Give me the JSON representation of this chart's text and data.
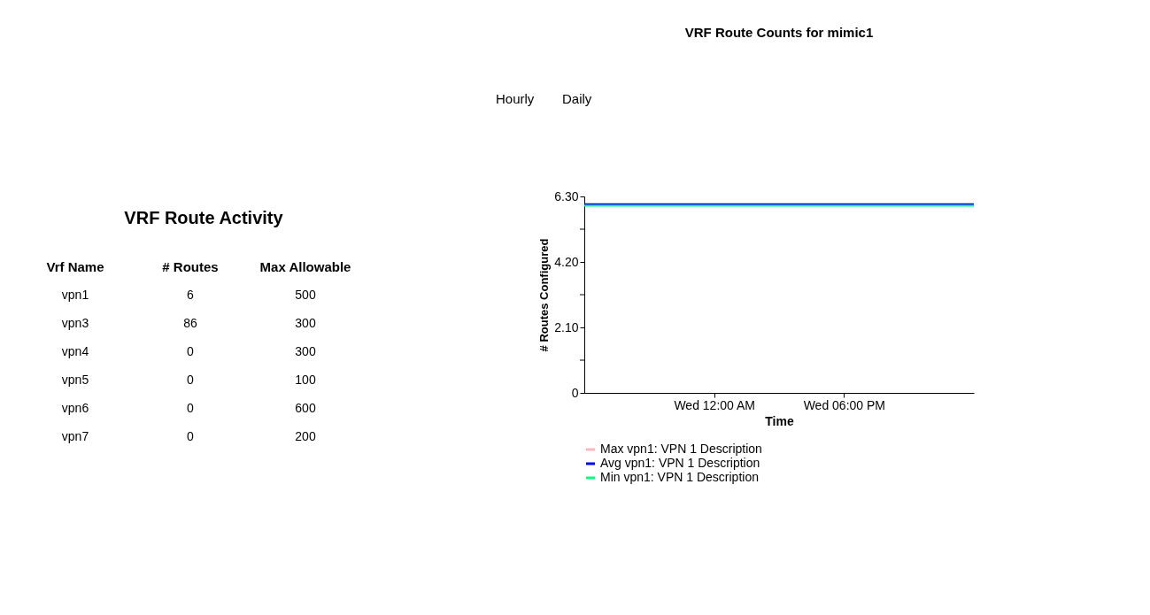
{
  "chart_data": [
    {
      "type": "other",
      "title": "VRF Route Activity",
      "xlabel": "Vrf Name",
      "categories": [
        "vpn1",
        "vpn3",
        "vpn4",
        "vpn5",
        "vpn6",
        "vpn7"
      ],
      "series": [
        {
          "name": "# Routes",
          "color": "#000000",
          "values": [
            6,
            86,
            0,
            0,
            0,
            0
          ],
          "value_labels": [
            "6",
            "86",
            "0",
            "0",
            "0",
            "0"
          ]
        },
        {
          "name": "Max Allowable",
          "color": "#000000",
          "values": [
            500,
            300,
            300,
            100,
            600,
            200
          ],
          "value_labels": [
            "500",
            "300",
            "300",
            "100",
            "600",
            "200"
          ]
        }
      ]
    },
    {
      "type": "line",
      "title": "VRF Route Counts for mimic1",
      "xlabel": "Time",
      "ylabel": "# Routes Configured",
      "annotations": [
        "Hourly",
        "Daily"
      ],
      "categories": [
        null,
        "Wed 12:00 AM",
        "Wed 06:00 PM",
        null
      ],
      "ylim": [
        0,
        6.3
      ],
      "yticks": [
        0,
        {
          "value": 1.05,
          "label": null
        },
        {
          "value": 2.1,
          "label": "2.10"
        },
        {
          "value": 3.15,
          "label": null
        },
        {
          "value": 4.2,
          "label": "4.20"
        },
        {
          "value": 5.25,
          "label": null
        },
        {
          "value": 6.3,
          "label": "6.30"
        }
      ],
      "grid": false,
      "legend": "bottom",
      "series": [
        {
          "name": "Max vpn1: VPN 1 Description",
          "color": "#ffb6c1",
          "values": [
            null,
            null,
            null,
            null
          ]
        },
        {
          "name": "Avg vpn1: VPN 1 Description",
          "color": "#0000ff",
          "values": [
            6.05,
            6.05,
            6.05,
            6.05
          ]
        },
        {
          "name": "Min vpn1: VPN 1 Description",
          "color": "#00ff7f",
          "values": [
            6,
            6,
            6,
            6
          ]
        }
      ]
    }
  ]
}
